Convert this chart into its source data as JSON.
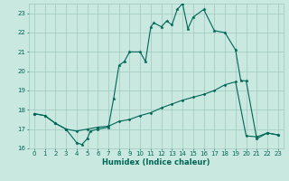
{
  "xlabel": "Humidex (Indice chaleur)",
  "bg_color": "#c8e8e0",
  "grid_color": "#a0c8be",
  "line_color": "#006655",
  "xlim": [
    -0.5,
    23.5
  ],
  "ylim": [
    16,
    23.5
  ],
  "xticks": [
    0,
    1,
    2,
    3,
    4,
    5,
    6,
    7,
    8,
    9,
    10,
    11,
    12,
    13,
    14,
    15,
    16,
    17,
    18,
    19,
    20,
    21,
    22,
    23
  ],
  "yticks": [
    16,
    17,
    18,
    19,
    20,
    21,
    22,
    23
  ],
  "line1_x": [
    0,
    1,
    2,
    3,
    4,
    4.5,
    5,
    5.3,
    6,
    7,
    7.5,
    8,
    8.5,
    9,
    10,
    10.5,
    11,
    11.3,
    12,
    12.5,
    13,
    13.5,
    14,
    14.5,
    15,
    16,
    17,
    18,
    19,
    19.5,
    20,
    21,
    22,
    23
  ],
  "line1_y": [
    17.8,
    17.7,
    17.3,
    17.0,
    16.3,
    16.2,
    16.5,
    16.9,
    17.0,
    17.1,
    18.6,
    20.3,
    20.5,
    21.0,
    21.0,
    20.5,
    22.3,
    22.5,
    22.3,
    22.6,
    22.4,
    23.2,
    23.5,
    22.2,
    22.8,
    23.2,
    22.1,
    22.0,
    21.1,
    19.5,
    19.5,
    16.5,
    16.8,
    16.7
  ],
  "line2_x": [
    0,
    1,
    2,
    3,
    4,
    5,
    6,
    7,
    8,
    9,
    10,
    11,
    12,
    13,
    14,
    15,
    16,
    17,
    18,
    19,
    20,
    21,
    22,
    23
  ],
  "line2_y": [
    17.8,
    17.7,
    17.3,
    17.0,
    16.9,
    17.0,
    17.1,
    17.15,
    17.4,
    17.5,
    17.7,
    17.85,
    18.1,
    18.3,
    18.5,
    18.65,
    18.8,
    19.0,
    19.3,
    19.45,
    16.65,
    16.6,
    16.8,
    16.7
  ]
}
